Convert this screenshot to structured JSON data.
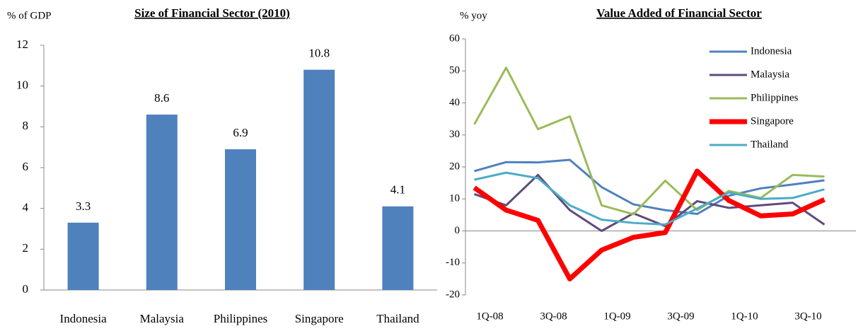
{
  "chart_data": [
    {
      "type": "bar",
      "title": "Size of Financial Sector (2010)",
      "y_label": "% of GDP",
      "categories": [
        "Indonesia",
        "Malaysia",
        "Philippines",
        "Singapore",
        "Thailand"
      ],
      "values": [
        3.3,
        8.6,
        6.9,
        10.8,
        4.1
      ],
      "color": "#4f81bd",
      "ylim": [
        0,
        12
      ],
      "yticks": [
        0,
        2,
        4,
        6,
        8,
        10,
        12
      ],
      "data_labels": true
    },
    {
      "type": "line",
      "title": "Value Added of Financial Sector",
      "y_label": "% yoy",
      "categories": [
        "1Q-08",
        null,
        "3Q-08",
        null,
        "1Q-09",
        null,
        "3Q-09",
        null,
        "1Q-10",
        null,
        "3Q-10",
        null
      ],
      "series": [
        {
          "name": "Indonesia",
          "color": "#4f81bd",
          "width": 3,
          "values": [
            18.7,
            21.5,
            21.4,
            22.2,
            13.7,
            8.3,
            6.5,
            5.3,
            11,
            13.3,
            14.5,
            15.8
          ]
        },
        {
          "name": "Malaysia",
          "color": "#604a7b",
          "width": 3,
          "values": [
            11.5,
            8,
            17.5,
            6.5,
            0,
            5.5,
            1.5,
            9.3,
            7.2,
            8,
            8.8,
            2
          ]
        },
        {
          "name": "Philippines",
          "color": "#9bbb59",
          "width": 3,
          "values": [
            33.3,
            51,
            31.8,
            35.8,
            8,
            5.2,
            15.7,
            6.5,
            12.5,
            10.3,
            17.5,
            17
          ]
        },
        {
          "name": "Singapore",
          "color": "#ff0000",
          "width": 7,
          "values": [
            13.5,
            6.5,
            3.3,
            -15,
            -6,
            -2,
            -0.5,
            18.7,
            9.5,
            4.7,
            5.3,
            9.8
          ]
        },
        {
          "name": "Thailand",
          "color": "#4bacc6",
          "width": 3,
          "values": [
            16,
            18.2,
            16.5,
            8,
            3.5,
            2.5,
            2,
            7,
            12,
            10,
            10.3,
            13
          ]
        }
      ],
      "ylim": [
        -20,
        60
      ],
      "yticks": [
        -20,
        -10,
        0,
        10,
        20,
        30,
        40,
        50,
        60
      ],
      "legend": "upper right"
    }
  ]
}
